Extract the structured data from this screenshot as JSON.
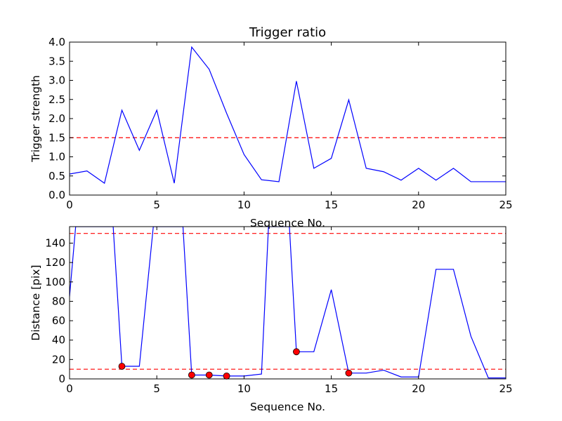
{
  "chart_data": [
    {
      "type": "line",
      "title": "Trigger ratio",
      "xlabel": "Sequence No.",
      "ylabel": "Trigger strength",
      "xlim": [
        0,
        25
      ],
      "ylim": [
        0,
        4
      ],
      "xticks": [
        0,
        5,
        10,
        15,
        20,
        25
      ],
      "yticks": [
        0.0,
        0.5,
        1.0,
        1.5,
        2.0,
        2.5,
        3.0,
        3.5,
        4.0
      ],
      "ytick_labels": [
        "0.0",
        "0.5",
        "1.0",
        "1.5",
        "2.0",
        "2.5",
        "3.0",
        "3.5",
        "4.0"
      ],
      "series": [
        {
          "color": "#0000ff",
          "x": [
            0,
            1,
            2,
            3,
            4,
            5,
            6,
            7,
            8,
            9,
            10,
            11,
            12,
            13,
            14,
            15,
            16,
            17,
            18,
            19,
            20,
            21,
            22,
            23,
            24,
            25
          ],
          "y": [
            0.55,
            0.63,
            0.31,
            2.22,
            1.17,
            2.22,
            0.31,
            3.87,
            3.29,
            2.14,
            1.06,
            0.4,
            0.35,
            2.98,
            0.7,
            0.96,
            2.49,
            0.7,
            0.61,
            0.39,
            0.7,
            0.39,
            0.7,
            0.35,
            0.35,
            0.35
          ]
        }
      ],
      "thresholds": [
        {
          "y": 1.5,
          "color": "#ff0000",
          "style": "dashed"
        }
      ]
    },
    {
      "type": "line",
      "title": "",
      "xlabel": "Sequence No.",
      "ylabel": "Distance [pix]",
      "xlim": [
        0,
        25
      ],
      "ylim": [
        0,
        157
      ],
      "xticks": [
        0,
        5,
        10,
        15,
        20,
        25
      ],
      "yticks": [
        0,
        20,
        40,
        60,
        80,
        100,
        120,
        140
      ],
      "ytick_labels": [
        "0",
        "20",
        "40",
        "60",
        "80",
        "100",
        "120",
        "140"
      ],
      "series": [
        {
          "color": "#0000ff",
          "x": [
            0,
            0.35,
            2.5,
            3,
            4,
            4.8,
            6.5,
            7,
            8,
            9,
            10,
            11,
            11.4,
            12.6,
            13,
            14,
            15,
            16,
            17,
            18,
            19,
            20,
            21,
            22,
            23,
            24,
            25
          ],
          "y": [
            85,
            157,
            157,
            13,
            13,
            157,
            157,
            4,
            4,
            3,
            3,
            5,
            157,
            157,
            28,
            28,
            92,
            6,
            6,
            9,
            2,
            2,
            113,
            113,
            44,
            1,
            1
          ]
        }
      ],
      "markers": {
        "color": "#ff0000",
        "x": [
          3,
          7,
          8,
          9,
          13,
          16
        ],
        "y": [
          13,
          4,
          4,
          3,
          28,
          6
        ]
      },
      "thresholds": [
        {
          "y": 150,
          "color": "#ff0000",
          "style": "dashed"
        },
        {
          "y": 10,
          "color": "#ff0000",
          "style": "dashed"
        }
      ]
    }
  ]
}
